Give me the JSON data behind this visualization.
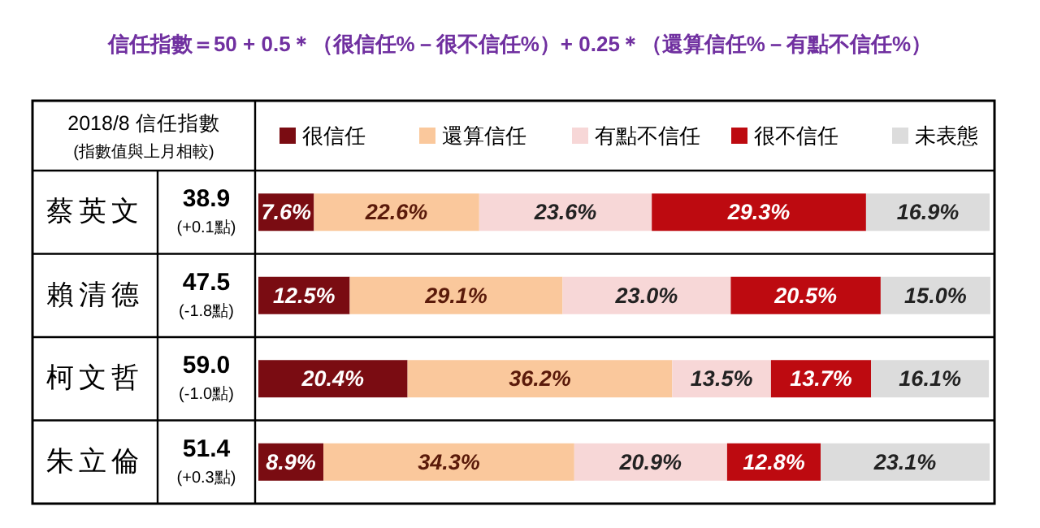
{
  "chart_data": {
    "type": "bar",
    "orientation": "horizontal",
    "stacked": true,
    "legend": "top",
    "tick_labels": false,
    "xlim": [
      0,
      100
    ],
    "title": "信任指數＝50 + 0.5＊（很信任%－很不信任%）+ 0.25＊（還算信任%－有點不信任%）",
    "categories": [
      "蔡英文",
      "賴清德",
      "柯文哲",
      "朱立倫"
    ],
    "series": [
      {
        "name": "很信任",
        "color": "#7a0c12",
        "values": [
          7.6,
          12.5,
          20.4,
          8.9
        ],
        "value_labels": [
          "7.6%",
          "12.5%",
          "20.4%",
          "8.9%"
        ]
      },
      {
        "name": "還算信任",
        "color": "#fac89c",
        "values": [
          22.6,
          29.1,
          36.2,
          34.3
        ],
        "value_labels": [
          "22.6%",
          "29.1%",
          "36.2%",
          "34.3%"
        ]
      },
      {
        "name": "有點不信任",
        "color": "#f7d7d7",
        "values": [
          23.6,
          23.0,
          13.5,
          20.9
        ],
        "value_labels": [
          "23.6%",
          "23.0%",
          "13.5%",
          "20.9%"
        ]
      },
      {
        "name": "很不信任",
        "color": "#bd0a10",
        "values": [
          29.3,
          20.5,
          13.7,
          12.8
        ],
        "value_labels": [
          "29.3%",
          "20.5%",
          "13.7%",
          "12.8%"
        ]
      },
      {
        "name": "未表態",
        "color": "#dcdcdc",
        "values": [
          16.9,
          15.0,
          16.1,
          23.1
        ],
        "value_labels": [
          "16.9%",
          "15.0%",
          "16.1%",
          "23.1%"
        ]
      }
    ],
    "annotations": [
      "2018/8 信任指數",
      "(指數值與上月相較)",
      "38.9",
      "(+0.1點)",
      "47.5",
      "(-1.8點)",
      "59.0",
      "(-1.0點)",
      "51.4",
      "(+0.3點)"
    ]
  }
}
